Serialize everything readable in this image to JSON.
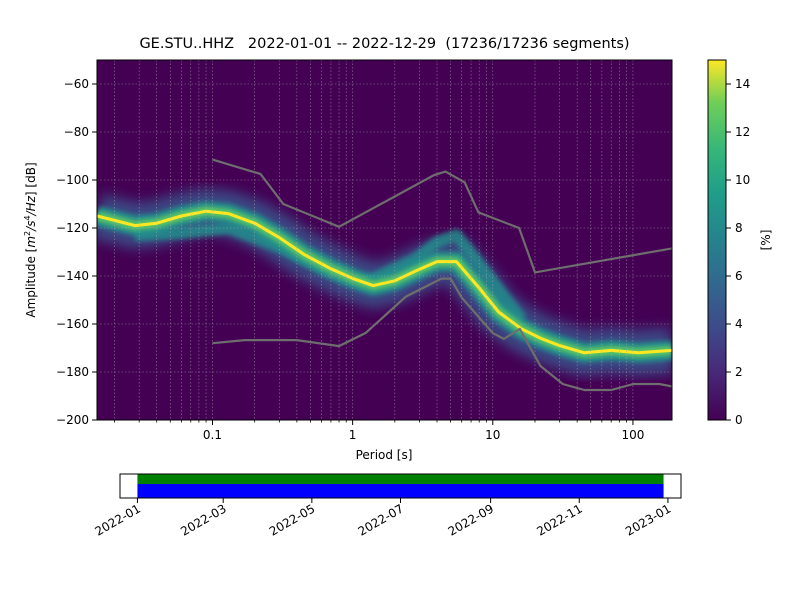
{
  "title": "GE.STU..HHZ   2022-01-01 -- 2022-12-29  (17236/17236 segments)",
  "chart_data": [
    {
      "type": "heatmap",
      "name": "ppsd",
      "xlabel": "Period [s]",
      "ylabel_parts": [
        "Amplitude [",
        "m",
        "2",
        "/s",
        "4",
        "/Hz",
        "] [dB]"
      ],
      "x_scale": "log",
      "xlim": [
        0.015,
        190
      ],
      "ylim": [
        -200,
        -50
      ],
      "x_ticks": [
        {
          "value": 0.1,
          "label": "0.1"
        },
        {
          "value": 1,
          "label": "1"
        },
        {
          "value": 10,
          "label": "10"
        },
        {
          "value": 100,
          "label": "100"
        }
      ],
      "y_ticks": [
        {
          "value": -60,
          "label": "−60"
        },
        {
          "value": -80,
          "label": "−80"
        },
        {
          "value": -100,
          "label": "−100"
        },
        {
          "value": -120,
          "label": "−120"
        },
        {
          "value": -140,
          "label": "−140"
        },
        {
          "value": -160,
          "label": "−160"
        },
        {
          "value": -180,
          "label": "−180"
        },
        {
          "value": -200,
          "label": "−200"
        }
      ],
      "grid": true,
      "colormap": "viridis",
      "background_color": "#440154",
      "model_line_color": "#6e6e6e",
      "mode_curve": [
        {
          "x": 0.015,
          "y": -115
        },
        {
          "x": 0.028,
          "y": -119
        },
        {
          "x": 0.04,
          "y": -118
        },
        {
          "x": 0.06,
          "y": -115
        },
        {
          "x": 0.09,
          "y": -113
        },
        {
          "x": 0.13,
          "y": -114
        },
        {
          "x": 0.2,
          "y": -118
        },
        {
          "x": 0.3,
          "y": -124
        },
        {
          "x": 0.45,
          "y": -131
        },
        {
          "x": 0.7,
          "y": -137
        },
        {
          "x": 1.0,
          "y": -141
        },
        {
          "x": 1.4,
          "y": -144
        },
        {
          "x": 2.0,
          "y": -142
        },
        {
          "x": 2.8,
          "y": -138
        },
        {
          "x": 4.0,
          "y": -134
        },
        {
          "x": 5.5,
          "y": -134
        },
        {
          "x": 8,
          "y": -145
        },
        {
          "x": 11,
          "y": -155
        },
        {
          "x": 16,
          "y": -162
        },
        {
          "x": 22,
          "y": -166
        },
        {
          "x": 30,
          "y": -169
        },
        {
          "x": 45,
          "y": -172
        },
        {
          "x": 70,
          "y": -171
        },
        {
          "x": 110,
          "y": -172
        },
        {
          "x": 190,
          "y": -171
        }
      ],
      "secondary_curve": [
        {
          "x": 0.028,
          "y": -123
        },
        {
          "x": 0.06,
          "y": -122
        },
        {
          "x": 0.13,
          "y": -120
        },
        {
          "x": 0.3,
          "y": -128
        },
        {
          "x": 0.7,
          "y": -138
        },
        {
          "x": 1.2,
          "y": -143
        },
        {
          "x": 2.8,
          "y": -133
        },
        {
          "x": 4.0,
          "y": -126
        },
        {
          "x": 5.5,
          "y": -123
        },
        {
          "x": 8,
          "y": -135
        },
        {
          "x": 16,
          "y": -158
        }
      ],
      "nhnm": [
        {
          "x": 0.1,
          "y": -91.5
        },
        {
          "x": 0.22,
          "y": -97.5
        },
        {
          "x": 0.32,
          "y": -110
        },
        {
          "x": 0.8,
          "y": -119.5
        },
        {
          "x": 3.8,
          "y": -98
        },
        {
          "x": 4.6,
          "y": -96.5
        },
        {
          "x": 6.3,
          "y": -101
        },
        {
          "x": 7.9,
          "y": -113.5
        },
        {
          "x": 15.4,
          "y": -120
        },
        {
          "x": 20,
          "y": -138.5
        },
        {
          "x": 190,
          "y": -128.5
        }
      ],
      "nlnm": [
        {
          "x": 0.1,
          "y": -168
        },
        {
          "x": 0.17,
          "y": -166.7
        },
        {
          "x": 0.4,
          "y": -166.7
        },
        {
          "x": 0.8,
          "y": -169.2
        },
        {
          "x": 1.24,
          "y": -163.7
        },
        {
          "x": 2.4,
          "y": -148.6
        },
        {
          "x": 4.3,
          "y": -141.1
        },
        {
          "x": 5.0,
          "y": -141.1
        },
        {
          "x": 6.0,
          "y": -149
        },
        {
          "x": 10,
          "y": -163.8
        },
        {
          "x": 12,
          "y": -166.2
        },
        {
          "x": 15.6,
          "y": -162.1
        },
        {
          "x": 21.9,
          "y": -177.5
        },
        {
          "x": 31.6,
          "y": -185
        },
        {
          "x": 45,
          "y": -187.5
        },
        {
          "x": 70,
          "y": -187.5
        },
        {
          "x": 101,
          "y": -185
        },
        {
          "x": 154,
          "y": -185
        },
        {
          "x": 190,
          "y": -186
        }
      ]
    },
    {
      "type": "colorbar",
      "name": "colorbar",
      "label": "[%]",
      "range": [
        0,
        15
      ],
      "ticks": [
        {
          "value": 0,
          "label": "0"
        },
        {
          "value": 2,
          "label": "2"
        },
        {
          "value": 4,
          "label": "4"
        },
        {
          "value": 6,
          "label": "6"
        },
        {
          "value": 8,
          "label": "8"
        },
        {
          "value": 10,
          "label": "10"
        },
        {
          "value": 12,
          "label": "12"
        },
        {
          "value": 14,
          "label": "14"
        }
      ]
    },
    {
      "type": "timeline",
      "name": "data-coverage",
      "xlim": [
        "2021-12-20",
        "2023-01-10"
      ],
      "coverage": [
        "2022-01-01",
        "2022-12-29"
      ],
      "top_color": "#008000",
      "bottom_color": "#0000ff",
      "ticks": [
        {
          "value": "2022-01-01",
          "label": "2022-01"
        },
        {
          "value": "2022-03-01",
          "label": "2022-03"
        },
        {
          "value": "2022-05-01",
          "label": "2022-05"
        },
        {
          "value": "2022-07-01",
          "label": "2022-07"
        },
        {
          "value": "2022-09-01",
          "label": "2022-09"
        },
        {
          "value": "2022-11-01",
          "label": "2022-11"
        },
        {
          "value": "2023-01-01",
          "label": "2023-01"
        }
      ]
    }
  ]
}
